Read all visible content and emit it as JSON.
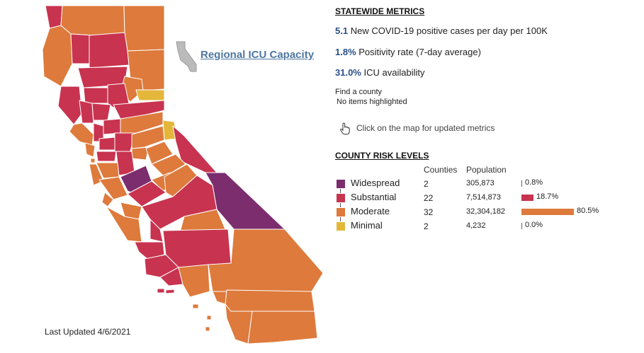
{
  "colors": {
    "widespread": "#7b2d6e",
    "substantial": "#c8334f",
    "moderate": "#dd7a3c",
    "minimal": "#e4b73b",
    "link": "#4e77a2",
    "metric_value": "#2a4f87"
  },
  "map": {
    "regional_link": "Regional ICU Capacity",
    "last_updated": "Last Updated 4/6/2021"
  },
  "statewide": {
    "title": "STATEWIDE METRICS",
    "metrics": [
      {
        "value": "5.1",
        "label": "New COVID-19 positive cases per day per 100K"
      },
      {
        "value": "1.8%",
        "label": "Positivity rate (7-day average)"
      },
      {
        "value": "31.0%",
        "label": "ICU availability"
      }
    ]
  },
  "find": {
    "label": "Find a county",
    "status": "No items highlighted"
  },
  "hint": {
    "icon": "hand-pointer-icon",
    "text": "Click on the map for updated metrics"
  },
  "risk": {
    "title": "COUNTY RISK LEVELS",
    "col_counties": "Counties",
    "col_population": "Population",
    "levels": [
      {
        "name": "Widespread",
        "counties": "2",
        "population": "305,873",
        "pct_label": "0.8%",
        "pct": 0.8
      },
      {
        "name": "Substantial",
        "counties": "22",
        "population": "7,514,873",
        "pct_label": "18.7%",
        "pct": 18.7
      },
      {
        "name": "Moderate",
        "counties": "32",
        "population": "32,304,182",
        "pct_label": "80.5%",
        "pct": 80.5
      },
      {
        "name": "Minimal",
        "counties": "2",
        "population": "4,232",
        "pct_label": "0.0%",
        "pct": 0.0
      }
    ]
  }
}
